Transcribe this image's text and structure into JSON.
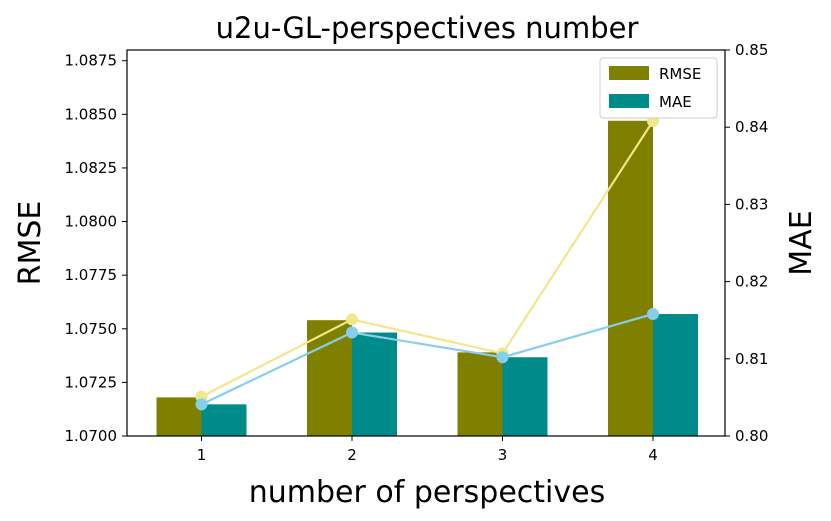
{
  "chart_data": {
    "type": "bar",
    "title": "u2u-GL-perspectives number",
    "xlabel": "number of perspectives",
    "ylabel_left": "RMSE",
    "ylabel_right": "MAE",
    "categories": [
      "1",
      "2",
      "3",
      "4"
    ],
    "ylim_left": [
      1.07,
      1.088
    ],
    "yticks_left": [
      "1.0700",
      "1.0725",
      "1.0750",
      "1.0775",
      "1.0800",
      "1.0825",
      "1.0850",
      "1.0875"
    ],
    "ylim_right": [
      0.8,
      0.85
    ],
    "yticks_right": [
      "0.80",
      "0.81",
      "0.82",
      "0.83",
      "0.84",
      "0.85"
    ],
    "grid": false,
    "legend_position": "top-right",
    "series": [
      {
        "name": "RMSE",
        "axis": "left",
        "kind": "bar",
        "color": "#808000",
        "values": [
          1.0718,
          1.0754,
          1.0739,
          1.0847
        ]
      },
      {
        "name": "MAE",
        "axis": "right",
        "kind": "bar",
        "color": "#008b8b",
        "values": [
          0.8041,
          0.8134,
          0.8102,
          0.8158
        ]
      }
    ],
    "overlay_lines": [
      {
        "axis": "right",
        "color": "#f0e68c",
        "values": [
          0.8051,
          0.8151,
          0.8107,
          0.8408
        ]
      },
      {
        "axis": "right",
        "color": "#87ceeb",
        "values": [
          0.8041,
          0.8134,
          0.8102,
          0.8158
        ]
      }
    ]
  }
}
